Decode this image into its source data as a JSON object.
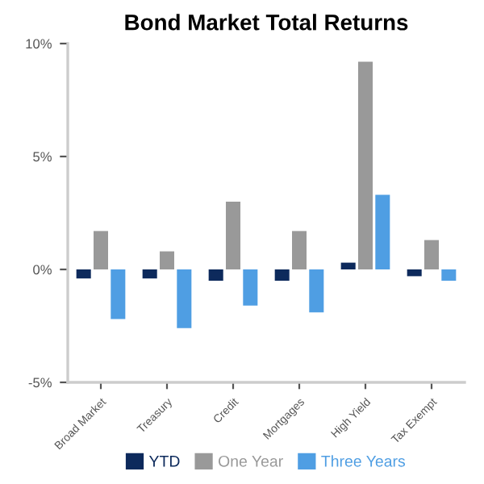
{
  "chart_data": {
    "type": "bar",
    "title": "Bond Market Total Returns",
    "categories": [
      "Broad Market",
      "Treasury",
      "Credit",
      "Mortgages",
      "High Yield",
      "Tax Exempt"
    ],
    "series": [
      {
        "name": "YTD",
        "color": "#0d2a5c",
        "values": [
          -0.4,
          -0.4,
          -0.5,
          -0.5,
          0.3,
          -0.3
        ]
      },
      {
        "name": "One Year",
        "color": "#999999",
        "values": [
          1.7,
          0.8,
          3.0,
          1.7,
          9.2,
          1.3
        ]
      },
      {
        "name": "Three Years",
        "color": "#4f9ee3",
        "values": [
          -2.2,
          -2.6,
          -1.6,
          -1.9,
          3.3,
          -0.5
        ]
      }
    ],
    "ylim": [
      -5,
      10
    ],
    "yticks": [
      {
        "value": -5,
        "label": "-5%"
      },
      {
        "value": 0,
        "label": "0%"
      },
      {
        "value": 5,
        "label": "5%"
      },
      {
        "value": 10,
        "label": "10%"
      }
    ],
    "grid": false,
    "legend": "bottom"
  }
}
